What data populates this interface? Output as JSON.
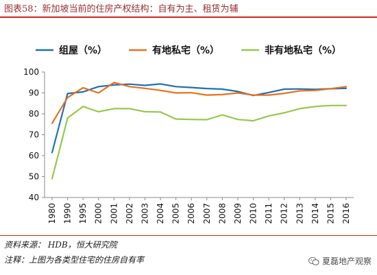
{
  "figure": {
    "title": "图表58：新加坡当前的住房产权结构：自有为主、租赁为辅",
    "source": "资料来源：  HDB，恒大研究院",
    "note": "注释：上图为各类型住宅的住房自有率",
    "watermark": "夏磊地产观察",
    "watermark_icon": "wechat-icon"
  },
  "colors": {
    "title": "#9a2f2f",
    "rule": "#c8261c",
    "series": [
      "#1f6eb5",
      "#e8701c",
      "#93c94b"
    ]
  },
  "chart_data": {
    "type": "line",
    "categories": [
      "1980",
      "1990",
      "1995",
      "2000",
      "2001",
      "2002",
      "2003",
      "2004",
      "2005",
      "2006",
      "2007",
      "2008",
      "2009",
      "2010",
      "2011",
      "2012",
      "2013",
      "2014",
      "2015",
      "2016"
    ],
    "series": [
      {
        "name": "组屋（%）",
        "values": [
          61.5,
          89.7,
          90.5,
          93.0,
          93.8,
          94.2,
          93.6,
          94.3,
          93.0,
          92.6,
          92.1,
          91.8,
          90.7,
          88.8,
          90.2,
          91.8,
          91.9,
          91.7,
          92.0,
          92.2
        ]
      },
      {
        "name": "有地私宅（%）",
        "values": [
          75.5,
          87.8,
          92.5,
          90.0,
          95.0,
          93.0,
          92.2,
          91.2,
          90.0,
          90.1,
          89.0,
          89.2,
          90.0,
          89.0,
          89.0,
          89.8,
          91.0,
          91.2,
          92.0,
          93.0
        ]
      },
      {
        "name": "非有地私宅（%）",
        "values": [
          49.0,
          78.0,
          83.5,
          81.0,
          82.5,
          82.5,
          81.0,
          80.9,
          77.5,
          77.3,
          77.2,
          79.5,
          77.3,
          76.7,
          79.0,
          80.5,
          82.5,
          83.5,
          84.0,
          84.0
        ]
      }
    ],
    "xlabel": "",
    "ylabel": "",
    "ylim": [
      40,
      100
    ],
    "yticks": [
      40,
      50,
      60,
      70,
      80,
      90,
      100
    ],
    "grid": false,
    "legend": "top"
  }
}
